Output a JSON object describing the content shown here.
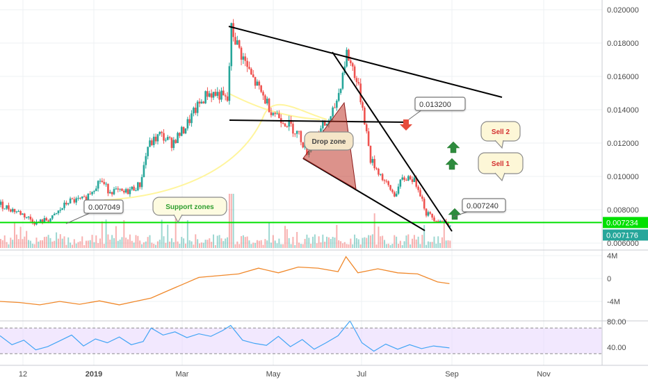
{
  "chart_data": [
    {
      "type": "candlestick",
      "panel": "price",
      "title": "",
      "ylim": [
        0.0058,
        0.0205
      ],
      "y_ticks": [
        "0.020000",
        "0.018000",
        "0.016000",
        "0.014000",
        "0.012000",
        "0.010000",
        "0.008000",
        "0.006000"
      ],
      "x_ticks": [
        {
          "label": "12",
          "bold": false
        },
        {
          "label": "2019",
          "bold": true
        },
        {
          "label": "Mar",
          "bold": false
        },
        {
          "label": "May",
          "bold": false
        },
        {
          "label": "Jul",
          "bold": false
        },
        {
          "label": "Sep",
          "bold": false
        },
        {
          "label": "Nov",
          "bold": false
        }
      ],
      "price_path": [
        [
          0,
          0.0083
        ],
        [
          5,
          0.0078
        ],
        [
          9,
          0.0072
        ],
        [
          13,
          0.0075
        ],
        [
          17,
          0.0085
        ],
        [
          21,
          0.0086
        ],
        [
          25,
          0.0098
        ],
        [
          27,
          0.0092
        ],
        [
          31,
          0.009
        ],
        [
          35,
          0.0095
        ],
        [
          37,
          0.0118
        ],
        [
          40,
          0.0125
        ],
        [
          43,
          0.012
        ],
        [
          46,
          0.0128
        ],
        [
          49,
          0.014
        ],
        [
          52,
          0.015
        ],
        [
          55,
          0.0149
        ],
        [
          57,
          0.0145
        ],
        [
          58,
          0.0188
        ],
        [
          60,
          0.0176
        ],
        [
          63,
          0.016
        ],
        [
          66,
          0.0148
        ],
        [
          68,
          0.014
        ],
        [
          70,
          0.0136
        ],
        [
          73,
          0.013
        ],
        [
          75,
          0.0125
        ],
        [
          77,
          0.0115
        ],
        [
          79,
          0.0122
        ],
        [
          81,
          0.013
        ],
        [
          83,
          0.0134
        ],
        [
          85,
          0.015
        ],
        [
          87,
          0.0174
        ],
        [
          89,
          0.0162
        ],
        [
          91,
          0.0142
        ],
        [
          93,
          0.011
        ],
        [
          95,
          0.0103
        ],
        [
          97,
          0.0095
        ],
        [
          99,
          0.0089
        ],
        [
          101,
          0.0098
        ],
        [
          103,
          0.01
        ],
        [
          105,
          0.0094
        ],
        [
          107,
          0.0078
        ],
        [
          109,
          0.0075
        ],
        [
          111,
          0.0073
        ],
        [
          113,
          0.0072
        ]
      ],
      "price_labels": [
        {
          "value": "0.007234",
          "color": "#00e000"
        },
        {
          "value": "0.007176",
          "color": "#26a69a"
        }
      ],
      "support_line": {
        "value": 0.007234,
        "color": "#00e000"
      },
      "callouts": [
        "0.007049",
        "0.013200",
        "0.007240"
      ],
      "annotations": {
        "support_zones": "Support zones",
        "drop_zone": "Drop zone",
        "sell_1": "Sell 1",
        "sell_2": "Sell 2"
      },
      "colors": {
        "up": "#26a69a",
        "down": "#ef5350",
        "trendline": "#000000",
        "arc": "#fff59d",
        "drop_zone": "#c0392b"
      }
    },
    {
      "type": "line",
      "panel": "on-balance-volume",
      "y_ticks": [
        "4M",
        "0",
        "-4M"
      ],
      "x": [
        0,
        5,
        10,
        15,
        20,
        25,
        30,
        34,
        38,
        42,
        46,
        50,
        55,
        60,
        65,
        70,
        75,
        80,
        85,
        87,
        90,
        95,
        100,
        105,
        110,
        113
      ],
      "values": [
        -4.0,
        -4.2,
        -4.6,
        -4.0,
        -4.5,
        -3.9,
        -4.6,
        -4.0,
        -3.4,
        -2.2,
        -1.0,
        0.2,
        0.5,
        0.8,
        1.8,
        1.0,
        2.0,
        1.8,
        1.2,
        3.8,
        1.0,
        1.7,
        1.0,
        0.8,
        -0.6,
        -0.9
      ],
      "color": "#f0882a"
    },
    {
      "type": "line",
      "panel": "rsi",
      "y_ticks": [
        "80.00",
        "40.00"
      ],
      "ylim": [
        20,
        95
      ],
      "bands": [
        70,
        30
      ],
      "x": [
        0,
        3,
        6,
        9,
        12,
        15,
        18,
        21,
        24,
        27,
        30,
        33,
        36,
        38,
        41,
        44,
        47,
        50,
        53,
        56,
        58,
        61,
        64,
        67,
        70,
        73,
        76,
        79,
        82,
        85,
        88,
        91,
        94,
        97,
        100,
        103,
        106,
        109,
        113
      ],
      "values": [
        58,
        44,
        51,
        36,
        41,
        50,
        59,
        42,
        53,
        47,
        56,
        44,
        49,
        70,
        59,
        64,
        55,
        61,
        57,
        66,
        74,
        51,
        46,
        43,
        57,
        41,
        52,
        37,
        47,
        58,
        81,
        47,
        34,
        45,
        37,
        44,
        38,
        42,
        39
      ],
      "color": "#42a5f5",
      "band_color": "#e9d8fd"
    }
  ]
}
